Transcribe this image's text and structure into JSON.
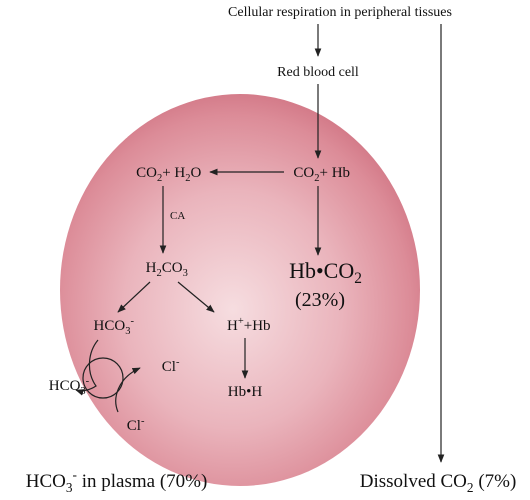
{
  "header": {
    "title": "Cellular respiration in peripheral tissues"
  },
  "nodes": {
    "rbc": "Red blood cell",
    "co2_h2o": [
      "CO",
      "2",
      "+ H",
      "2",
      "O"
    ],
    "co2_hb": [
      "CO",
      "2",
      "+ Hb"
    ],
    "ca": "CA",
    "h2co3": [
      "H",
      "2",
      "CO",
      "3"
    ],
    "hco3_cell": [
      "HCO",
      "3",
      "-"
    ],
    "h_hb": [
      "H",
      "+",
      "+Hb"
    ],
    "hb_co2": [
      "Hb•CO",
      "2"
    ],
    "hb_co2_pct": "(23%)",
    "hb_h": "Hb•H",
    "hco3_out": [
      "HCO",
      "3",
      "-"
    ],
    "cl_in": [
      "Cl",
      "-"
    ],
    "cl_out": [
      "Cl",
      "-"
    ]
  },
  "footer": {
    "plasma": [
      "HCO",
      "3",
      "-",
      " in plasma (70%)"
    ],
    "dissolved": [
      "Dissolved CO",
      "2",
      " (7%)"
    ]
  }
}
